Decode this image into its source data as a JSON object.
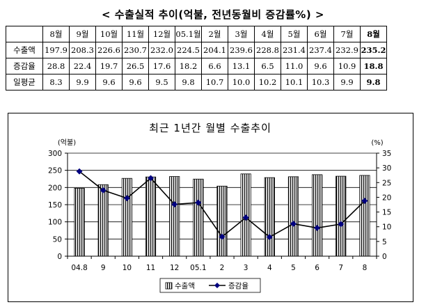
{
  "heading": "< 수출실적 추이(억불, 전년동월비 증감률%) >",
  "table": {
    "columns": [
      "8월",
      "9월",
      "10월",
      "11월",
      "12월",
      "05.1월",
      "2월",
      "3월",
      "4월",
      "5월",
      "6월",
      "7월",
      "8월"
    ],
    "rows": [
      {
        "label": "수출액",
        "values": [
          "197.9",
          "208.3",
          "226.6",
          "230.7",
          "232.0",
          "224.5",
          "204.1",
          "239.6",
          "228.8",
          "231.4",
          "237.4",
          "232.9",
          "235.2"
        ]
      },
      {
        "label": "증감율",
        "values": [
          "28.8",
          "22.4",
          "19.7",
          "26.5",
          "17.6",
          "18.2",
          "6.6",
          "13.1",
          "6.5",
          "11.0",
          "9.6",
          "10.9",
          "18.8"
        ]
      },
      {
        "label": "일평균",
        "values": [
          "8.3",
          "9.9",
          "9.6",
          "9.6",
          "9.5",
          "9.8",
          "10.7",
          "10.0",
          "10.2",
          "10.1",
          "10.3",
          "9.9",
          "9.8"
        ]
      }
    ]
  },
  "chart_data": {
    "type": "bar",
    "title": "최근 1년간 월별 수출추이",
    "categories": [
      "04.8",
      "9",
      "10",
      "11",
      "12",
      "05.1",
      "2",
      "3",
      "4",
      "5",
      "6",
      "7",
      "8"
    ],
    "series": [
      {
        "name": "수출액",
        "type": "bar",
        "axis": "left",
        "values": [
          197.9,
          208.3,
          226.6,
          230.7,
          232.0,
          224.5,
          204.1,
          239.6,
          228.8,
          231.4,
          237.4,
          232.9,
          235.2
        ]
      },
      {
        "name": "증감율",
        "type": "line",
        "axis": "right",
        "values": [
          28.8,
          22.4,
          19.7,
          26.5,
          17.6,
          18.2,
          6.6,
          13.1,
          6.5,
          11.0,
          9.6,
          10.9,
          18.8
        ]
      }
    ],
    "y_left": {
      "label": "(억불)",
      "min": 0,
      "max": 300,
      "ticks": [
        0,
        50,
        100,
        150,
        200,
        250,
        300
      ]
    },
    "y_right": {
      "label": "(%)",
      "min": 0,
      "max": 35,
      "ticks": [
        0,
        5,
        10,
        15,
        20,
        25,
        30,
        35
      ]
    },
    "grid": "horizontal",
    "legend_position": "bottom",
    "colors": {
      "bar_fill": "#ffffff",
      "bar_hatch": "#000000",
      "line": "#000000",
      "marker": "#00007f"
    }
  }
}
